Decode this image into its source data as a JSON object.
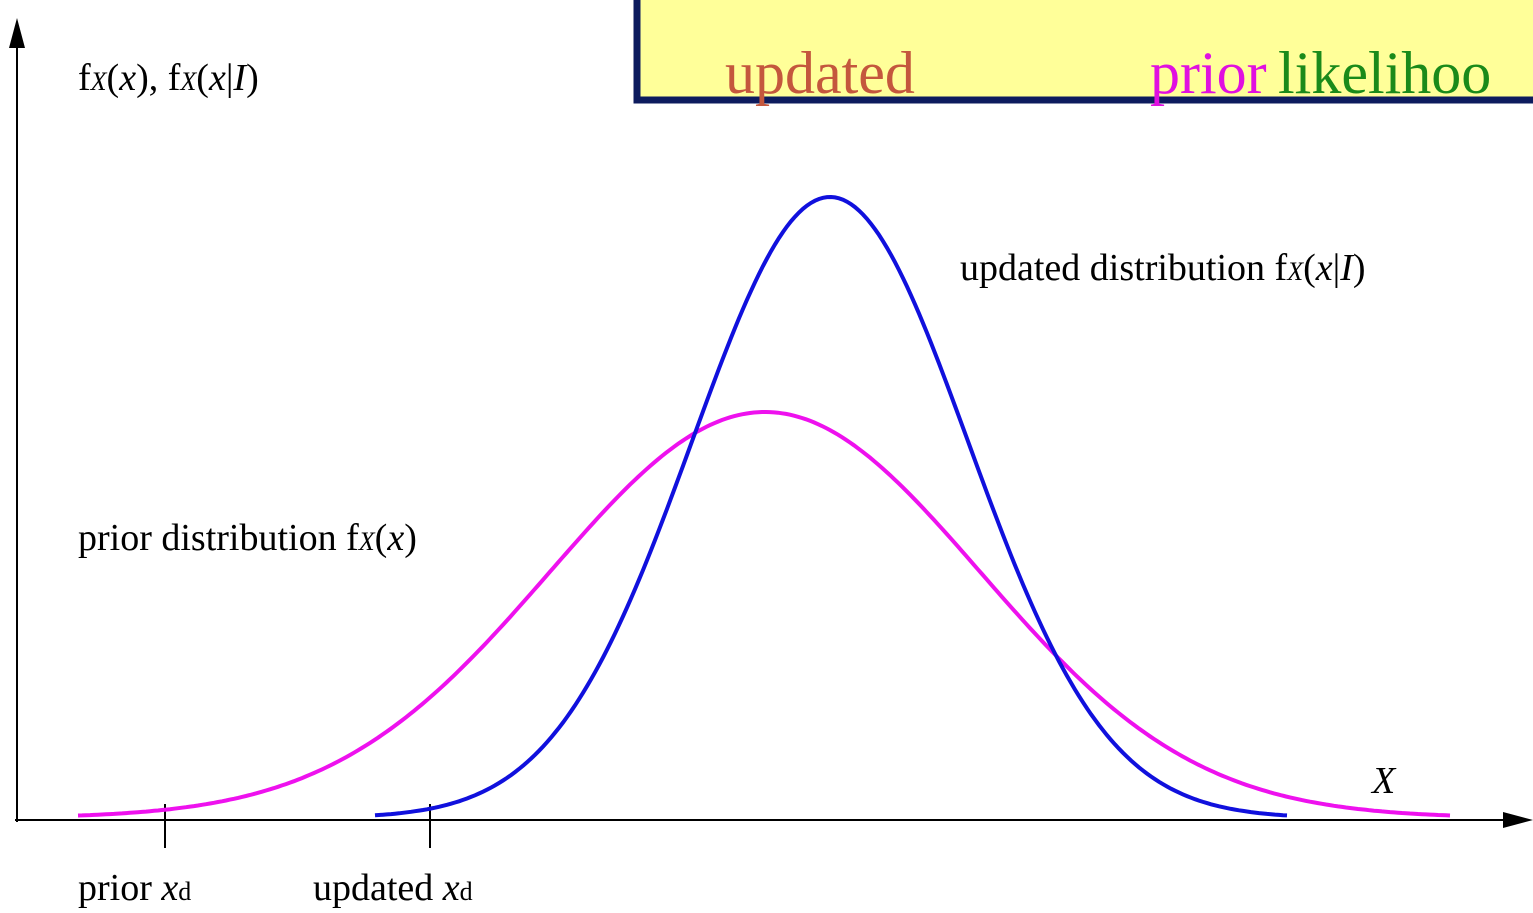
{
  "legend_box": {
    "updated": "updated",
    "prior": "prior",
    "likelihood": "likelihoo"
  },
  "y_axis_label": [
    "f",
    "X",
    "(",
    "x",
    "), f",
    "X",
    "(",
    "x",
    "|",
    "I",
    ")"
  ],
  "updated_label": [
    "updated distribution f",
    "X",
    "(",
    "x",
    "|",
    "I",
    ")"
  ],
  "prior_label": [
    "prior distribution f",
    "X",
    "(",
    "x",
    ")"
  ],
  "x_axis_label": "X",
  "prior_xd": [
    "prior ",
    "x",
    "d"
  ],
  "updated_xd": [
    "updated ",
    "x",
    "d"
  ]
}
